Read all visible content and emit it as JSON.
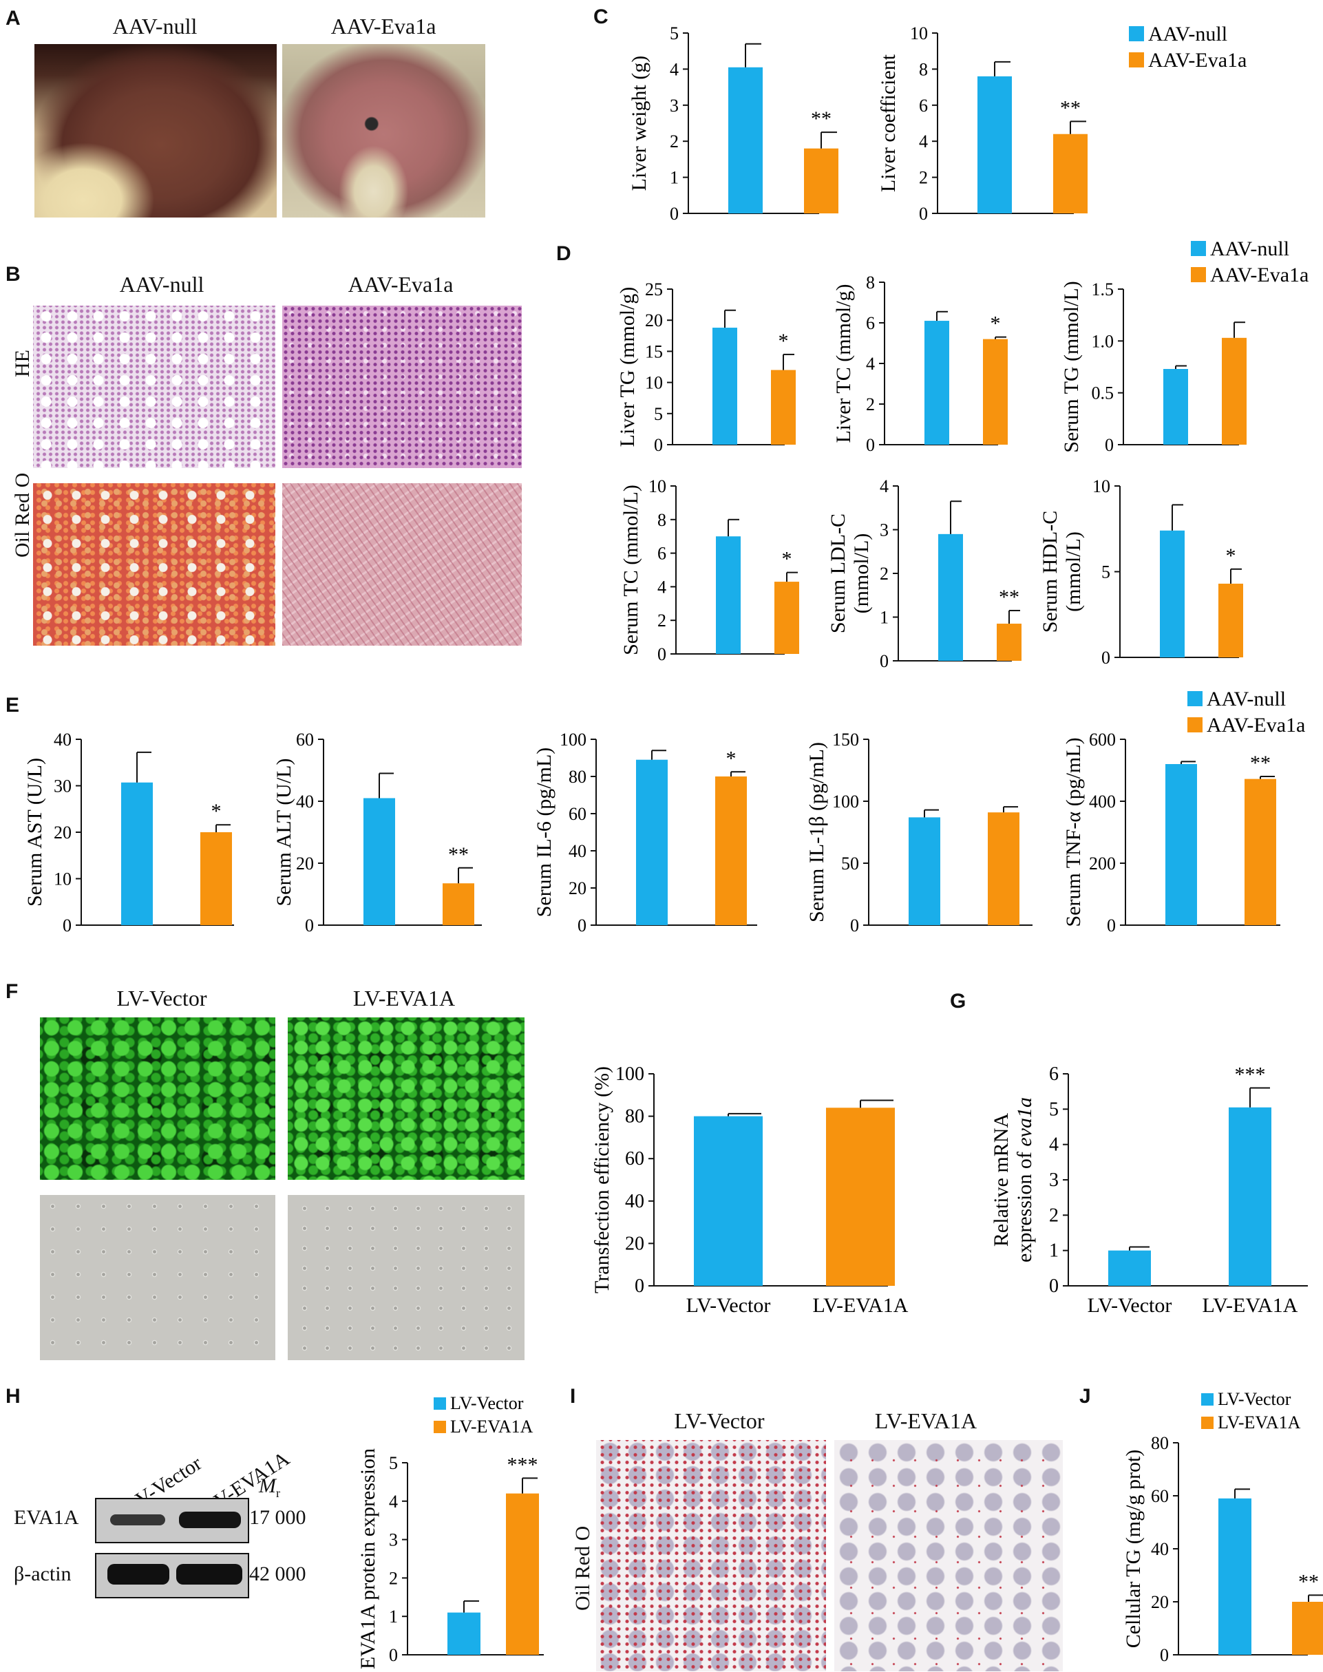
{
  "colors": {
    "null": "#1aaeea",
    "eva": "#f7930e",
    "axis": "#111111"
  },
  "panels": {
    "A": {
      "letter": "A",
      "captions": [
        "AAV-null",
        "AAV-Eva1a"
      ]
    },
    "B": {
      "letter": "B",
      "captions": [
        "AAV-null",
        "AAV-Eva1a"
      ],
      "rows": [
        "HE",
        "Oil Red O"
      ]
    },
    "C": {
      "letter": "C"
    },
    "D": {
      "letter": "D"
    },
    "E": {
      "letter": "E"
    },
    "F": {
      "letter": "F",
      "captions": [
        "LV-Vector",
        "LV-EVA1A"
      ]
    },
    "G": {
      "letter": "G"
    },
    "H": {
      "letter": "H",
      "lanes": [
        "LV-Vector",
        "LV-EVA1A"
      ],
      "mr": "M",
      "mr_sub": "r",
      "bands": [
        {
          "name": "EVA1A",
          "mw": "17 000"
        },
        {
          "name": "β-actin",
          "mw": "42 000"
        }
      ]
    },
    "I": {
      "letter": "I",
      "captions": [
        "LV-Vector",
        "LV-EVA1A"
      ],
      "row": "Oil Red O"
    },
    "J": {
      "letter": "J"
    }
  },
  "legends": {
    "aav": [
      "AAV-null",
      "AAV-Eva1a"
    ],
    "lv": [
      "LV-Vector",
      "LV-EVA1A"
    ]
  },
  "chart_data": [
    {
      "id": "C1",
      "type": "bar",
      "categories": [
        "AAV-null",
        "AAV-Eva1a"
      ],
      "values": [
        4.05,
        1.8
      ],
      "errors": [
        0.65,
        0.45
      ],
      "sig": [
        "",
        "**"
      ],
      "ylabel": "Liver weight (g)",
      "ylim": [
        0,
        5
      ],
      "ticks": [
        0,
        1,
        2,
        3,
        4,
        5
      ]
    },
    {
      "id": "C2",
      "type": "bar",
      "categories": [
        "AAV-null",
        "AAV-Eva1a"
      ],
      "values": [
        7.6,
        4.4
      ],
      "errors": [
        0.8,
        0.7
      ],
      "sig": [
        "",
        "**"
      ],
      "ylabel": "Liver coefficient",
      "ylim": [
        0,
        10
      ],
      "ticks": [
        0,
        2,
        4,
        6,
        8,
        10
      ]
    },
    {
      "id": "D1",
      "type": "bar",
      "categories": [
        "AAV-null",
        "AAV-Eva1a"
      ],
      "values": [
        18.8,
        12.0
      ],
      "errors": [
        2.8,
        2.5
      ],
      "sig": [
        "",
        "*"
      ],
      "ylabel": "Liver TG (mmol/g)",
      "ylim": [
        0,
        25
      ],
      "ticks": [
        0,
        5,
        10,
        15,
        20,
        25
      ]
    },
    {
      "id": "D2",
      "type": "bar",
      "categories": [
        "AAV-null",
        "AAV-Eva1a"
      ],
      "values": [
        6.1,
        5.2
      ],
      "errors": [
        0.45,
        0.1
      ],
      "sig": [
        "",
        "*"
      ],
      "ylabel": "Liver TC (mmol/g)",
      "ylim": [
        0,
        8
      ],
      "ticks": [
        0,
        2,
        4,
        6,
        8
      ]
    },
    {
      "id": "D3",
      "type": "bar",
      "categories": [
        "AAV-null",
        "AAV-Eva1a"
      ],
      "values": [
        0.73,
        1.03
      ],
      "errors": [
        0.03,
        0.15
      ],
      "sig": [
        "",
        ""
      ],
      "ylabel": "Serum TG (mmol/L)",
      "ylim": [
        0,
        1.5
      ],
      "ticks": [
        0,
        0.5,
        1.0,
        1.5
      ],
      "ticklabels": [
        "0",
        "0.5",
        "1.0",
        "1.5"
      ]
    },
    {
      "id": "D4",
      "type": "bar",
      "categories": [
        "AAV-null",
        "AAV-Eva1a"
      ],
      "values": [
        7.0,
        4.3
      ],
      "errors": [
        1.0,
        0.55
      ],
      "sig": [
        "",
        "*"
      ],
      "ylabel": "Serum TC (mmol/L)",
      "ylim": [
        0,
        10
      ],
      "ticks": [
        0,
        2,
        4,
        6,
        8,
        10
      ]
    },
    {
      "id": "D5",
      "type": "bar",
      "categories": [
        "AAV-null",
        "AAV-Eva1a"
      ],
      "values": [
        2.9,
        0.85
      ],
      "errors": [
        0.75,
        0.3
      ],
      "sig": [
        "",
        "**"
      ],
      "ylabel": "Serum LDL-C|(mmol/L)",
      "ylim": [
        0,
        4
      ],
      "ticks": [
        0,
        1,
        2,
        3,
        4
      ]
    },
    {
      "id": "D6",
      "type": "bar",
      "categories": [
        "AAV-null",
        "AAV-Eva1a"
      ],
      "values": [
        7.4,
        4.3
      ],
      "errors": [
        1.5,
        0.85
      ],
      "sig": [
        "",
        "*"
      ],
      "ylabel": "Serum HDL-C|(mmol/L)",
      "ylim": [
        0,
        10
      ],
      "ticks": [
        0,
        5,
        10
      ]
    },
    {
      "id": "E1",
      "type": "bar",
      "categories": [
        "AAV-null",
        "AAV-Eva1a"
      ],
      "values": [
        30.7,
        20.0
      ],
      "errors": [
        6.5,
        1.6
      ],
      "sig": [
        "",
        "*"
      ],
      "ylabel": "Serum AST (U/L)",
      "ylim": [
        0,
        40
      ],
      "ticks": [
        0,
        10,
        20,
        30,
        40
      ]
    },
    {
      "id": "E2",
      "type": "bar",
      "categories": [
        "AAV-null",
        "AAV-Eva1a"
      ],
      "values": [
        41.0,
        13.5
      ],
      "errors": [
        8.0,
        5.0
      ],
      "sig": [
        "",
        "**"
      ],
      "ylabel": "Serum ALT (U/L)",
      "ylim": [
        0,
        60
      ],
      "ticks": [
        0,
        20,
        40,
        60
      ]
    },
    {
      "id": "E3",
      "type": "bar",
      "categories": [
        "AAV-null",
        "AAV-Eva1a"
      ],
      "values": [
        89,
        80
      ],
      "errors": [
        5,
        2.5
      ],
      "sig": [
        "",
        "*"
      ],
      "ylabel": "Serum IL-6 (pg/mL)",
      "ylim": [
        0,
        100
      ],
      "ticks": [
        0,
        20,
        40,
        60,
        80,
        100
      ]
    },
    {
      "id": "E4",
      "type": "bar",
      "categories": [
        "AAV-null",
        "AAV-Eva1a"
      ],
      "values": [
        87,
        91
      ],
      "errors": [
        6,
        4.5
      ],
      "sig": [
        "",
        ""
      ],
      "ylabel": "Serum IL-1β (pg/mL)",
      "ylim": [
        0,
        150
      ],
      "ticks": [
        0,
        50,
        100,
        150
      ]
    },
    {
      "id": "E5",
      "type": "bar",
      "categories": [
        "AAV-null",
        "AAV-Eva1a"
      ],
      "values": [
        520,
        472
      ],
      "errors": [
        8,
        8
      ],
      "sig": [
        "",
        "**"
      ],
      "ylabel": "Serum TNF-α (pg/mL)",
      "ylim": [
        0,
        600
      ],
      "ticks": [
        0,
        200,
        400,
        600
      ]
    },
    {
      "id": "F",
      "type": "bar",
      "categories": [
        "LV-Vector",
        "LV-EVA1A"
      ],
      "values": [
        80,
        84
      ],
      "errors": [
        1.2,
        3.5
      ],
      "sig": [
        "",
        ""
      ],
      "ylabel": "Transfection efficiency (%)",
      "ylim": [
        0,
        100
      ],
      "ticks": [
        0,
        20,
        40,
        60,
        80,
        100
      ],
      "showCats": true
    },
    {
      "id": "G",
      "type": "bar",
      "categories": [
        "LV-Vector",
        "LV-EVA1A"
      ],
      "values": [
        1.0,
        5.05
      ],
      "errors": [
        0.1,
        0.55
      ],
      "sig": [
        "",
        "***"
      ],
      "ylabel": "Relative mRNA|expression of eva1a",
      "ylim": [
        0,
        6
      ],
      "ticks": [
        0,
        1,
        2,
        3,
        4,
        5,
        6
      ],
      "showCats": true,
      "singleColor": true
    },
    {
      "id": "H",
      "type": "bar",
      "categories": [
        "LV-Vector",
        "LV-EVA1A"
      ],
      "values": [
        1.1,
        4.2
      ],
      "errors": [
        0.3,
        0.4
      ],
      "sig": [
        "",
        "***"
      ],
      "ylabel": "EVA1A protein expression",
      "ylim": [
        0,
        5
      ],
      "ticks": [
        0,
        1,
        2,
        3,
        4,
        5
      ]
    },
    {
      "id": "J",
      "type": "bar",
      "categories": [
        "LV-Vector",
        "LV-EVA1A"
      ],
      "values": [
        59,
        20
      ],
      "errors": [
        3.5,
        2.5
      ],
      "sig": [
        "",
        "**"
      ],
      "ylabel": "Cellular TG (mg/g prot)",
      "ylim": [
        0,
        80
      ],
      "ticks": [
        0,
        20,
        40,
        60,
        80
      ]
    }
  ]
}
